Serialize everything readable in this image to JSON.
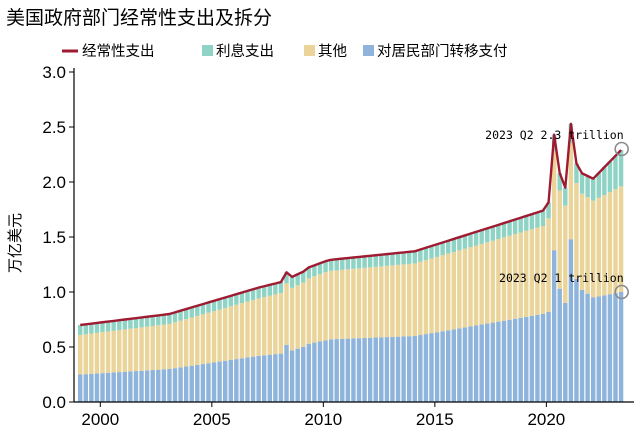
{
  "chart_data": {
    "type": "bar",
    "title": "美国政府部门经常性支出及拆分",
    "ylabel": "万亿美元",
    "xlabel": "",
    "ylim": [
      0,
      3.0
    ],
    "yticks": [
      "0.0",
      "0.5",
      "1.0",
      "1.5",
      "2.0",
      "2.5",
      "3.0"
    ],
    "xticks": [
      "2000",
      "2005",
      "2010",
      "2015",
      "2020"
    ],
    "x_range": [
      "1999Q1",
      "2023Q2"
    ],
    "legend_position": "top",
    "grid": false,
    "colors": {
      "line": "#9e1b32",
      "interest": "#8fd3c4",
      "other": "#ead49a",
      "transfers": "#8eb4dc"
    },
    "series": [
      {
        "name": "经常性支出",
        "kind": "line",
        "color": "#9e1b32"
      },
      {
        "name": "利息支出",
        "kind": "bar-stack",
        "color": "#8fd3c4"
      },
      {
        "name": "其他",
        "kind": "bar-stack",
        "color": "#ead49a"
      },
      {
        "name": "对居民部门转移支付",
        "kind": "bar-stack",
        "color": "#8eb4dc"
      }
    ],
    "keypoints": {
      "transfers": [
        [
          "1999Q1",
          0.25
        ],
        [
          "2003Q1",
          0.3
        ],
        [
          "2007Q1",
          0.42
        ],
        [
          "2008Q1",
          0.44
        ],
        [
          "2008Q2",
          0.52
        ],
        [
          "2008Q3",
          0.47
        ],
        [
          "2009Q1",
          0.5
        ],
        [
          "2009Q2",
          0.53
        ],
        [
          "2010Q2",
          0.57
        ],
        [
          "2014Q1",
          0.6
        ],
        [
          "2019Q4",
          0.8
        ],
        [
          "2020Q1",
          0.82
        ],
        [
          "2020Q2",
          1.38
        ],
        [
          "2020Q3",
          1.03
        ],
        [
          "2020Q4",
          0.9
        ],
        [
          "2021Q1",
          1.48
        ],
        [
          "2021Q2",
          1.12
        ],
        [
          "2021Q3",
          1.02
        ],
        [
          "2022Q1",
          0.95
        ],
        [
          "2023Q2",
          1.0
        ]
      ],
      "other": [
        [
          "1999Q1",
          0.36
        ],
        [
          "2003Q1",
          0.41
        ],
        [
          "2008Q1",
          0.55
        ],
        [
          "2010Q1",
          0.62
        ],
        [
          "2014Q1",
          0.66
        ],
        [
          "2019Q4",
          0.8
        ],
        [
          "2020Q2",
          0.9
        ],
        [
          "2021Q2",
          0.87
        ],
        [
          "2022Q1",
          0.88
        ],
        [
          "2023Q2",
          0.96
        ]
      ],
      "interest": [
        [
          "1999Q1",
          0.09
        ],
        [
          "2003Q1",
          0.09
        ],
        [
          "2008Q1",
          0.1
        ],
        [
          "2010Q1",
          0.1
        ],
        [
          "2014Q1",
          0.11
        ],
        [
          "2018Q1",
          0.13
        ],
        [
          "2019Q4",
          0.14
        ],
        [
          "2020Q2",
          0.15
        ],
        [
          "2022Q1",
          0.2
        ],
        [
          "2023Q2",
          0.33
        ]
      ]
    },
    "annotations": [
      {
        "text": "2023 Q2 2.3 trillion",
        "x": "2023Q2",
        "y": 2.3
      },
      {
        "text": "2023 Q2 1 trillion",
        "x": "2023Q2",
        "y": 1.0
      }
    ]
  }
}
